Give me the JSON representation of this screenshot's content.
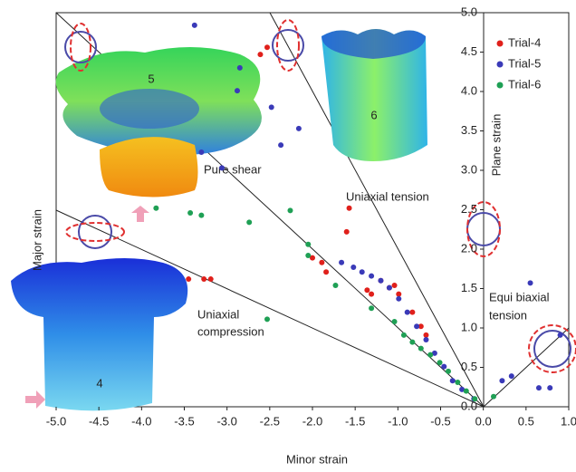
{
  "chart_data": {
    "type": "scatter",
    "xlabel": "Minor strain",
    "ylabel": "Major strain",
    "xlim": [
      -5.0,
      1.0
    ],
    "ylim": [
      0,
      5.0
    ],
    "xticks": [
      {
        "value": -5.0,
        "label": "-5.0"
      },
      {
        "value": -4.5,
        "label": "-4.5"
      },
      {
        "value": -4.0,
        "label": "-4.0"
      },
      {
        "value": -3.5,
        "label": "-3.5"
      },
      {
        "value": -3.0,
        "label": "-3.0"
      },
      {
        "value": -2.5,
        "label": "-2.5"
      },
      {
        "value": -2.0,
        "label": "-2.0"
      },
      {
        "value": -1.5,
        "label": "-1.5"
      },
      {
        "value": -1.0,
        "label": "-1.0"
      },
      {
        "value": -0.5,
        "label": "-0.5"
      },
      {
        "value": 0.0,
        "label": "0.0"
      },
      {
        "value": 0.5,
        "label": "0.5"
      },
      {
        "value": 1.0,
        "label": "1.0"
      }
    ],
    "yticks": [
      {
        "value": 0.0,
        "label": "0.0"
      },
      {
        "value": 0.5,
        "label": "0.5"
      },
      {
        "value": 1.0,
        "label": "1.0"
      },
      {
        "value": 1.5,
        "label": "1.5"
      },
      {
        "value": 2.0,
        "label": "2.0"
      },
      {
        "value": 2.5,
        "label": "2.5"
      },
      {
        "value": 3.0,
        "label": "3.0"
      },
      {
        "value": 3.5,
        "label": "3.5"
      },
      {
        "value": 4.0,
        "label": "4.0"
      },
      {
        "value": 4.5,
        "label": "4.5"
      },
      {
        "value": 5.0,
        "label": "5.0"
      }
    ],
    "legend": "top-right",
    "annotations": {
      "plane_strain": "Plane strain",
      "pure_shear": "Pure shear",
      "uniaxial_tension": "Uniaxial tension",
      "uniaxial_compression": [
        "Uniaxial",
        "compression"
      ],
      "equi_biaxial": [
        "Equi biaxial",
        "tension"
      ],
      "specimens": [
        "4",
        "5",
        "6"
      ]
    },
    "series": [
      {
        "name": "Trial-4",
        "color": "#e0201b",
        "x": [
          -2.61,
          -2.53,
          -3.45,
          -3.27,
          -3.19,
          -1.57,
          -1.6,
          -2.0,
          -1.89,
          -1.84,
          -1.36,
          -1.31,
          -1.2,
          -1.1,
          -1.04,
          -0.99,
          -0.83,
          -0.73,
          -0.67
        ],
        "values": [
          4.47,
          4.56,
          1.62,
          1.62,
          1.62,
          2.52,
          2.22,
          1.89,
          1.83,
          1.71,
          1.48,
          1.43,
          1.6,
          1.51,
          1.54,
          1.43,
          1.2,
          1.02,
          0.91
        ]
      },
      {
        "name": "Trial-5",
        "color": "#3a3ab8",
        "x": [
          -3.38,
          -2.85,
          -2.88,
          -2.48,
          -2.16,
          -2.37,
          -3.3,
          -3.06,
          -1.66,
          -1.52,
          -1.42,
          -1.31,
          -1.2,
          -1.1,
          -0.99,
          -0.89,
          -0.78,
          -0.67,
          -0.57,
          -0.46,
          -0.36,
          -0.25,
          -0.11,
          0.22,
          0.33,
          0.55,
          0.65,
          0.78,
          0.9
        ],
        "values": [
          4.84,
          4.3,
          4.01,
          3.8,
          3.53,
          3.32,
          3.23,
          3.03,
          1.83,
          1.77,
          1.71,
          1.66,
          1.6,
          1.51,
          1.37,
          1.2,
          1.02,
          0.85,
          0.68,
          0.51,
          0.33,
          0.22,
          0.1,
          0.33,
          0.39,
          1.57,
          0.24,
          0.24,
          0.91
        ]
      },
      {
        "name": "Trial-6",
        "color": "#1fa055",
        "x": [
          -3.83,
          -3.43,
          -3.3,
          -2.74,
          -2.26,
          -2.05,
          -2.05,
          -1.73,
          -2.53,
          -1.31,
          -1.04,
          -0.93,
          -0.83,
          -0.73,
          -0.62,
          -0.51,
          -0.41,
          -0.3,
          -0.2,
          -0.1,
          0.12
        ],
        "values": [
          2.52,
          2.46,
          2.43,
          2.34,
          2.49,
          2.06,
          1.92,
          1.54,
          1.11,
          1.25,
          1.08,
          0.91,
          0.82,
          0.74,
          0.66,
          0.56,
          0.45,
          0.31,
          0.2,
          0.1,
          0.13
        ]
      }
    ]
  }
}
